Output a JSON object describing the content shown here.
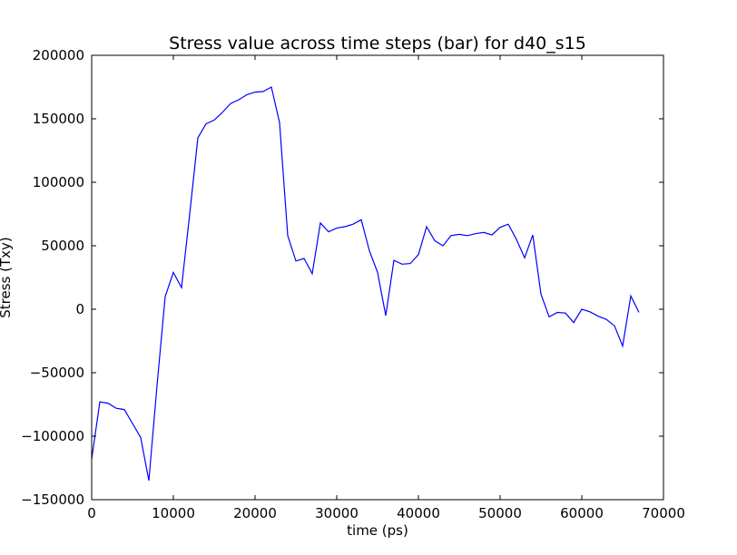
{
  "chart_data": {
    "type": "line",
    "title": "Stress value across time steps (bar) for d40_s15",
    "xlabel": "time (ps)",
    "ylabel": "Stress (Txy)",
    "xlim": [
      0,
      70000
    ],
    "ylim": [
      -150000,
      200000
    ],
    "xticks": [
      0,
      10000,
      20000,
      30000,
      40000,
      50000,
      60000,
      70000
    ],
    "xtick_labels": [
      "0",
      "10000",
      "20000",
      "30000",
      "40000",
      "50000",
      "60000",
      "70000"
    ],
    "yticks": [
      -150000,
      -100000,
      -50000,
      0,
      50000,
      100000,
      150000,
      200000
    ],
    "ytick_labels": [
      "−150000",
      "−100000",
      "−50000",
      "0",
      "50000",
      "100000",
      "150000",
      "200000"
    ],
    "grid": false,
    "series": [
      {
        "color": "#0000ff",
        "x": [
          0,
          1000,
          2000,
          3000,
          4000,
          5000,
          6000,
          7000,
          8000,
          9000,
          10000,
          11000,
          12000,
          13000,
          14000,
          15000,
          16000,
          17000,
          18000,
          19000,
          20000,
          21000,
          22000,
          23000,
          24000,
          25000,
          26000,
          27000,
          28000,
          29000,
          30000,
          31000,
          32000,
          33000,
          34000,
          35000,
          36000,
          37000,
          38000,
          39000,
          40000,
          41000,
          42000,
          43000,
          44000,
          45000,
          46000,
          47000,
          48000,
          49000,
          50000,
          51000,
          52000,
          53000,
          54000,
          55000,
          56000,
          57000,
          58000,
          59000,
          60000,
          61000,
          62000,
          63000,
          64000,
          65000,
          66000,
          67000
        ],
        "y": [
          -118000,
          -73000,
          -74000,
          -78000,
          -79000,
          -90000,
          -101000,
          -135000,
          -60000,
          10000,
          29000,
          17000,
          75000,
          135000,
          146000,
          149000,
          155000,
          162000,
          165000,
          169000,
          171000,
          171500,
          175000,
          147000,
          58000,
          38000,
          40000,
          28000,
          68000,
          61000,
          64000,
          65000,
          67000,
          70500,
          46000,
          29000,
          -5000,
          38500,
          35500,
          36000,
          43000,
          65000,
          54000,
          50000,
          58000,
          59000,
          58000,
          59500,
          60500,
          58500,
          64500,
          67000,
          55000,
          40500,
          58500,
          12000,
          -6000,
          -2500,
          -3000,
          -10500,
          0,
          -2000,
          -5500,
          -8000,
          -13000,
          -29000,
          10500,
          -2500
        ]
      }
    ]
  }
}
